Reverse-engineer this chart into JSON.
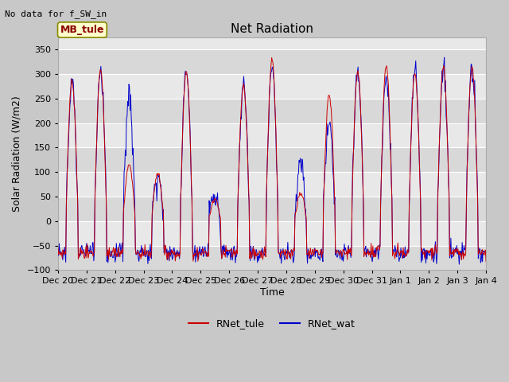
{
  "title": "Net Radiation",
  "subtitle": "No data for f_SW_in",
  "ylabel": "Solar Radiation (W/m2)",
  "xlabel": "Time",
  "ylim": [
    -100,
    375
  ],
  "yticks": [
    -100,
    -50,
    0,
    50,
    100,
    150,
    200,
    250,
    300,
    350
  ],
  "fig_bg_color": "#c8c8c8",
  "plot_bg_color": "#e8e8e8",
  "grid_color": "#ffffff",
  "line1_color": "#cc0000",
  "line2_color": "#0000cc",
  "legend_label1": "RNet_tule",
  "legend_label2": "RNet_wat",
  "annotation": "MB_tule",
  "xtick_labels": [
    "Dec 20",
    "Dec 21",
    "Dec 22",
    "Dec 23",
    "Dec 24",
    "Dec 25",
    "Dec 26",
    "Dec 27",
    "Dec 28",
    "Dec 29",
    "Dec 30",
    "Dec 31",
    "Jan 1",
    "Jan 2",
    "Jan 3",
    "Jan 4"
  ],
  "n_days": 15,
  "peaks_tule": [
    285,
    310,
    115,
    98,
    305,
    45,
    275,
    330,
    55,
    260,
    308,
    318,
    300,
    315,
    315
  ],
  "peaks_wat": [
    280,
    312,
    255,
    95,
    308,
    45,
    278,
    318,
    112,
    195,
    305,
    300,
    305,
    313,
    313
  ],
  "night_base": -65,
  "day_start": 0.28,
  "day_end": 0.72
}
